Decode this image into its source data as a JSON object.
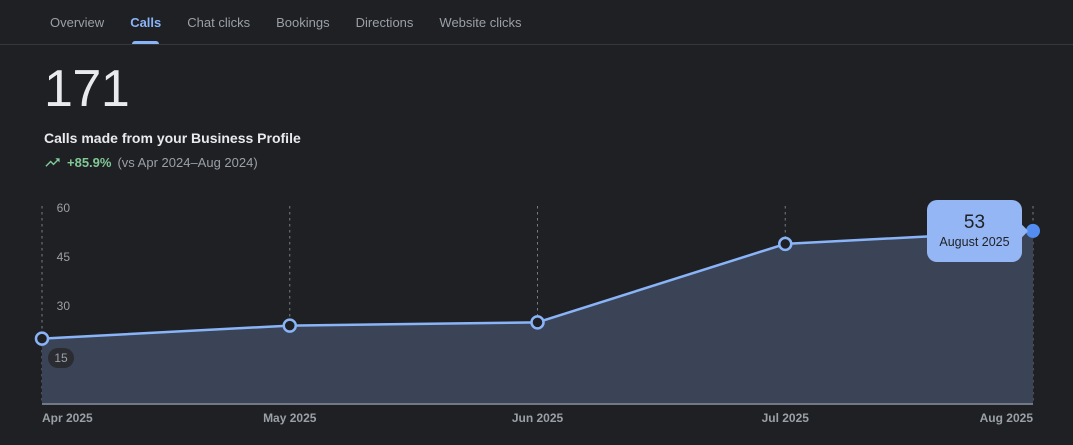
{
  "tabs": [
    {
      "label": "Overview",
      "active": false
    },
    {
      "label": "Calls",
      "active": true
    },
    {
      "label": "Chat clicks",
      "active": false
    },
    {
      "label": "Bookings",
      "active": false
    },
    {
      "label": "Directions",
      "active": false
    },
    {
      "label": "Website clicks",
      "active": false
    }
  ],
  "metric": {
    "value": "171",
    "description": "Calls made from your Business Profile",
    "change": "+85.9%",
    "comparison": "(vs Apr 2024–Aug 2024)",
    "trend_icon": "trending-up-icon"
  },
  "chart_data": {
    "type": "area",
    "title": "Calls made from your Business Profile",
    "categories": [
      "Apr 2025",
      "May 2025",
      "Jun 2025",
      "Jul 2025",
      "Aug 2025"
    ],
    "values": [
      20,
      24,
      25,
      49,
      53
    ],
    "xlabel": "",
    "ylabel": "",
    "ylim": [
      0,
      60
    ],
    "yticks": [
      15,
      30,
      45,
      60
    ],
    "grid": "vertical-dashed-month-lines",
    "legend": "none",
    "highlighted_point": {
      "category": "Aug 2025",
      "value": 53
    },
    "tooltip": {
      "value": "53",
      "label": "August 2025"
    }
  },
  "colors": {
    "accent_blue": "#8ab4f8",
    "positive_green": "#81c995",
    "tooltip_bg": "#94b6f5",
    "area_fill": "#3a4456",
    "highlight_marker": "#548df2",
    "background": "#1f2024",
    "text_primary": "#e8eaed",
    "text_secondary": "#9aa0a6",
    "gridline": "#777c84",
    "axis_line": "#717886"
  }
}
